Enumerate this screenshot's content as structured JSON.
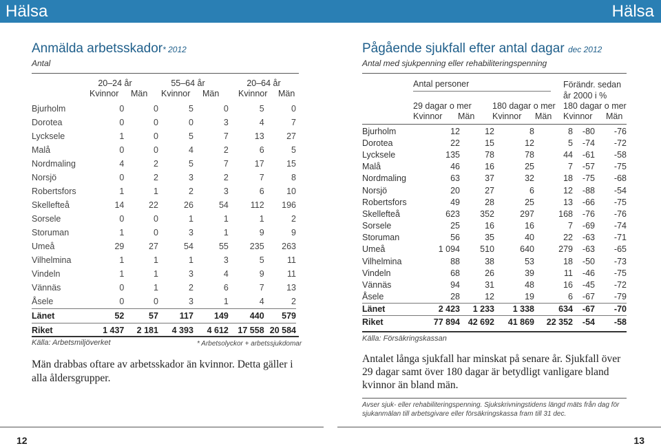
{
  "header": {
    "left_title": "Hälsa",
    "right_title": "Hälsa"
  },
  "left": {
    "title": "Anmälda arbetsskador",
    "title_suffix": "* 2012",
    "subtitle": "Antal",
    "groups": [
      "20–24 år",
      "55–64 år",
      "20–64 år"
    ],
    "cols": [
      "Kvinnor",
      "Män",
      "Kvinnor",
      "Män",
      "Kvinnor",
      "Män"
    ],
    "rows": [
      [
        "Bjurholm",
        "0",
        "0",
        "5",
        "0",
        "5",
        "0"
      ],
      [
        "Dorotea",
        "0",
        "0",
        "0",
        "3",
        "4",
        "7"
      ],
      [
        "Lycksele",
        "1",
        "0",
        "5",
        "7",
        "13",
        "27"
      ],
      [
        "Malå",
        "0",
        "0",
        "4",
        "2",
        "6",
        "5"
      ],
      [
        "Nordmaling",
        "4",
        "2",
        "5",
        "7",
        "17",
        "15"
      ],
      [
        "Norsjö",
        "0",
        "2",
        "3",
        "2",
        "7",
        "8"
      ],
      [
        "Robertsfors",
        "1",
        "1",
        "2",
        "3",
        "6",
        "10"
      ],
      [
        "Skellefteå",
        "14",
        "22",
        "26",
        "54",
        "112",
        "196"
      ],
      [
        "Sorsele",
        "0",
        "0",
        "1",
        "1",
        "1",
        "2"
      ],
      [
        "Storuman",
        "1",
        "0",
        "3",
        "1",
        "9",
        "9"
      ],
      [
        "Umeå",
        "29",
        "27",
        "54",
        "55",
        "235",
        "263"
      ],
      [
        "Vilhelmina",
        "1",
        "1",
        "1",
        "3",
        "5",
        "11"
      ],
      [
        "Vindeln",
        "1",
        "1",
        "3",
        "4",
        "9",
        "11"
      ],
      [
        "Vännäs",
        "0",
        "1",
        "2",
        "6",
        "7",
        "13"
      ],
      [
        "Åsele",
        "0",
        "0",
        "3",
        "1",
        "4",
        "2"
      ]
    ],
    "totals": [
      [
        "Länet",
        "52",
        "57",
        "117",
        "149",
        "440",
        "579"
      ],
      [
        "Riket",
        "1 437",
        "2 181",
        "4 393",
        "4 612",
        "17 558",
        "20 584"
      ]
    ],
    "source": "Källa: Arbetsmiljöverket",
    "note": "* Arbetsolyckor + arbetssjukdomar",
    "body": "Män drabbas oftare av arbetsskador än kvinnor. Detta gäller i alla åldersgrupper.",
    "page": "12"
  },
  "right": {
    "title": "Pågående sjukfall efter antal dagar",
    "title_suffix": "dec 2012",
    "subtitle": "Antal med sjukpenning eller rehabiliteringspenning",
    "hdr_persons": "Antal personer",
    "hdr_change": "Förändr. sedan år 2000 i %",
    "groups": [
      "29 dagar o mer",
      "180 dagar o mer",
      "180 dagar o mer"
    ],
    "cols": [
      "Kvinnor",
      "Män",
      "Kvinnor",
      "Män",
      "Kvinnor",
      "Män"
    ],
    "rows": [
      [
        "Bjurholm",
        "12",
        "12",
        "8",
        "8",
        "-80",
        "-76"
      ],
      [
        "Dorotea",
        "22",
        "15",
        "12",
        "5",
        "-74",
        "-72"
      ],
      [
        "Lycksele",
        "135",
        "78",
        "78",
        "44",
        "-61",
        "-58"
      ],
      [
        "Malå",
        "46",
        "16",
        "25",
        "7",
        "-57",
        "-75"
      ],
      [
        "Nordmaling",
        "63",
        "37",
        "32",
        "18",
        "-75",
        "-68"
      ],
      [
        "Norsjö",
        "20",
        "27",
        "6",
        "12",
        "-88",
        "-54"
      ],
      [
        "Robertsfors",
        "49",
        "28",
        "25",
        "13",
        "-66",
        "-75"
      ],
      [
        "Skellefteå",
        "623",
        "352",
        "297",
        "168",
        "-76",
        "-76"
      ],
      [
        "Sorsele",
        "25",
        "16",
        "16",
        "7",
        "-69",
        "-74"
      ],
      [
        "Storuman",
        "56",
        "35",
        "40",
        "22",
        "-63",
        "-71"
      ],
      [
        "Umeå",
        "1 094",
        "510",
        "640",
        "279",
        "-63",
        "-65"
      ],
      [
        "Vilhelmina",
        "88",
        "38",
        "53",
        "18",
        "-50",
        "-73"
      ],
      [
        "Vindeln",
        "68",
        "26",
        "39",
        "11",
        "-46",
        "-75"
      ],
      [
        "Vännäs",
        "94",
        "31",
        "48",
        "16",
        "-45",
        "-72"
      ],
      [
        "Åsele",
        "28",
        "12",
        "19",
        "6",
        "-67",
        "-79"
      ]
    ],
    "totals": [
      [
        "Länet",
        "2 423",
        "1 233",
        "1 338",
        "634",
        "-67",
        "-70"
      ],
      [
        "Riket",
        "77 894",
        "42 692",
        "41 869",
        "22 352",
        "-54",
        "-58"
      ]
    ],
    "source": "Källa: Försäkringskassan",
    "body": "Antalet långa sjukfall har minskat på senare år. Sjukfall över 29 dagar samt över 180 dagar är betydligt vanligare bland kvinnor än bland män.",
    "footnote": "Avser sjuk- eller rehabiliteringspenning. Sjukskrivningstidens längd mäts från dag för sjukanmälan till arbetsgivare eller försäkringskassa fram till 31 dec.",
    "page": "13"
  }
}
